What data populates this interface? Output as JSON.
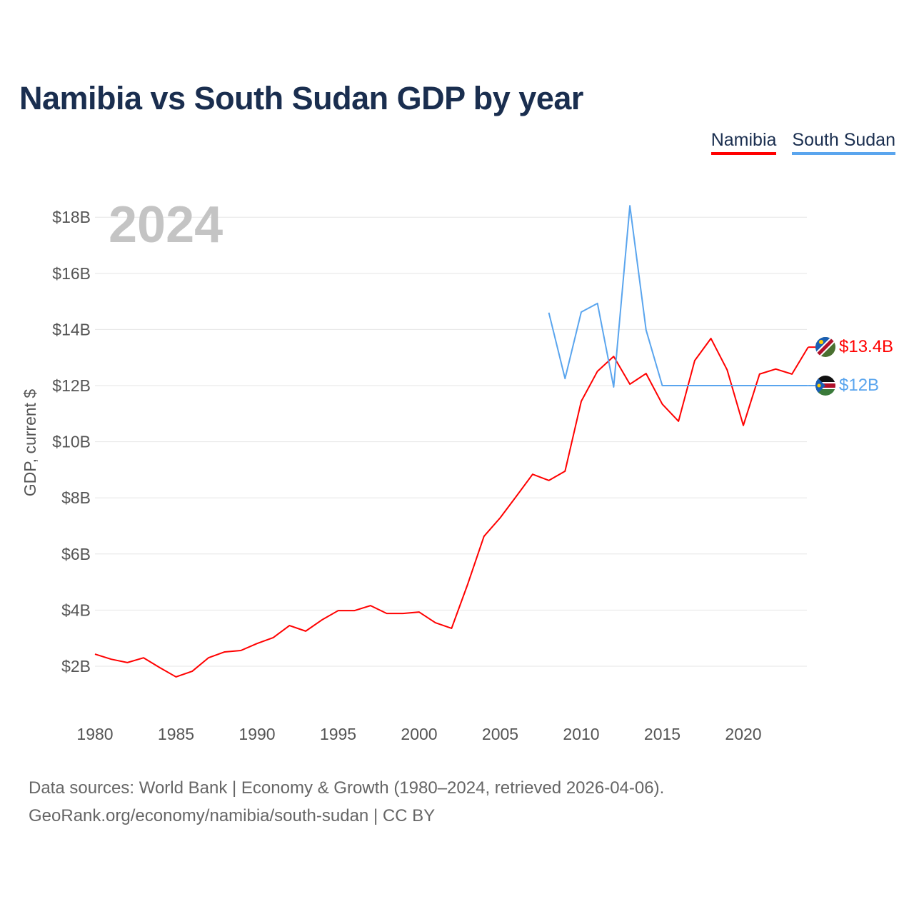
{
  "title": "Namibia vs South Sudan GDP by year",
  "legend": [
    {
      "label": "Namibia",
      "color": "#ff0000"
    },
    {
      "label": "South Sudan",
      "color": "#5aa5ee"
    }
  ],
  "year_overlay": "2024",
  "source_line1": "Data sources: World Bank | Economy & Growth (1980–2024, retrieved 2026-04-06).",
  "source_line2": "GeoRank.org/economy/namibia/south-sudan | CC BY",
  "chart_data": {
    "type": "line",
    "title": "Namibia vs South Sudan GDP by year",
    "xlabel": "",
    "ylabel": "GDP, current $",
    "xlim": [
      1980,
      2024
    ],
    "ylim": [
      0,
      19
    ],
    "grid": true,
    "legend_position": "top-right",
    "x_ticks": [
      1980,
      1985,
      1990,
      1995,
      2000,
      2005,
      2010,
      2015,
      2020
    ],
    "y_ticks": [
      2,
      4,
      6,
      8,
      10,
      12,
      14,
      16,
      18
    ],
    "y_tick_labels": [
      "$2B",
      "$4B",
      "$6B",
      "$8B",
      "$10B",
      "$12B",
      "$14B",
      "$16B",
      "$18B"
    ],
    "series": [
      {
        "name": "Namibia",
        "color": "#ff0000",
        "end_label": "$13.4B",
        "start_year": 1980,
        "values": [
          2.43,
          2.25,
          2.13,
          2.3,
          1.95,
          1.62,
          1.82,
          2.3,
          2.51,
          2.56,
          2.81,
          3.02,
          3.45,
          3.25,
          3.65,
          3.98,
          3.98,
          4.16,
          3.88,
          3.88,
          3.93,
          3.55,
          3.35,
          4.93,
          6.63,
          7.29,
          8.06,
          8.84,
          8.62,
          8.95,
          11.44,
          12.51,
          13.04,
          12.05,
          12.43,
          11.34,
          10.73,
          12.89,
          13.68,
          12.56,
          10.58,
          12.41,
          12.59,
          12.41,
          13.37
        ]
      },
      {
        "name": "South Sudan",
        "color": "#5aa5ee",
        "end_label": "$12B",
        "start_year": 2008,
        "values": [
          14.6,
          12.25,
          14.62,
          14.93,
          11.95,
          18.41,
          13.98,
          12.0,
          12.0,
          12.0,
          12.0,
          12.0,
          12.0,
          12.0,
          12.0,
          12.0,
          12.0
        ]
      }
    ]
  }
}
